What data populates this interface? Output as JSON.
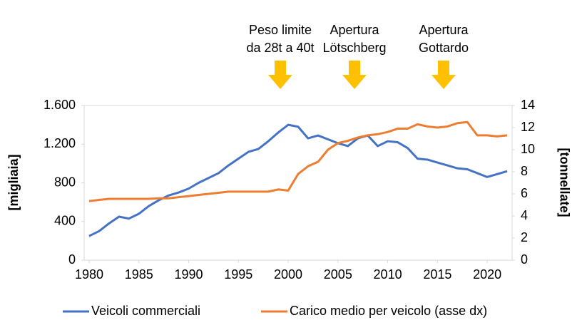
{
  "chart_data": {
    "type": "line",
    "annotations": [
      [
        "Peso limite",
        "da 28t a 40t"
      ],
      [
        "Apertura",
        "Lötschberg"
      ],
      [
        "Apertura",
        "Gottardo"
      ]
    ],
    "ylabel": "[migliaia]",
    "y2label": "[tonnellate]",
    "x": [
      1980,
      1981,
      1982,
      1983,
      1984,
      1985,
      1986,
      1987,
      1988,
      1989,
      1990,
      1991,
      1992,
      1993,
      1994,
      1995,
      1996,
      1997,
      1998,
      1999,
      2000,
      2001,
      2002,
      2003,
      2004,
      2005,
      2006,
      2007,
      2008,
      2009,
      2010,
      2011,
      2012,
      2013,
      2014,
      2015,
      2016,
      2017,
      2018,
      2019,
      2020,
      2021,
      2022
    ],
    "series": [
      {
        "name": "Veicoli commerciali",
        "color": "#4472c4",
        "values": [
          250,
          300,
          380,
          450,
          430,
          480,
          560,
          620,
          670,
          700,
          740,
          800,
          850,
          900,
          980,
          1050,
          1120,
          1150,
          1230,
          1320,
          1400,
          1380,
          1260,
          1290,
          1250,
          1210,
          1180,
          1260,
          1290,
          1180,
          1230,
          1220,
          1160,
          1050,
          1040,
          1010,
          980,
          950,
          940,
          900,
          860,
          890,
          920
        ]
      },
      {
        "name": "Carico medio per veicolo (asse dx)",
        "color": "#ed7d31",
        "axis": "y2",
        "values": [
          5.35,
          5.45,
          5.55,
          5.55,
          5.55,
          5.55,
          5.55,
          5.6,
          5.6,
          5.7,
          5.8,
          5.9,
          6.0,
          6.1,
          6.2,
          6.2,
          6.2,
          6.2,
          6.2,
          6.4,
          6.3,
          7.8,
          8.5,
          8.9,
          10.0,
          10.6,
          10.8,
          11.1,
          11.3,
          11.4,
          11.6,
          11.9,
          11.9,
          12.3,
          12.1,
          12.0,
          12.1,
          12.4,
          12.5,
          11.3,
          11.3,
          11.2,
          11.3
        ]
      }
    ],
    "xlim": [
      1979.5,
      2022.5
    ],
    "xticks": [
      1980,
      1985,
      1990,
      1995,
      2000,
      2005,
      2010,
      2015,
      2020
    ],
    "ylim": [
      0,
      1600
    ],
    "yticks": [
      0,
      400,
      800,
      {
        "value": 1200,
        "label": "1.200"
      },
      {
        "value": 1600,
        "label": "1.600"
      }
    ],
    "y2lim": [
      0,
      14
    ],
    "y2ticks": [
      0,
      2,
      4,
      6,
      8,
      10,
      12,
      14
    ],
    "legend": "bottom"
  }
}
